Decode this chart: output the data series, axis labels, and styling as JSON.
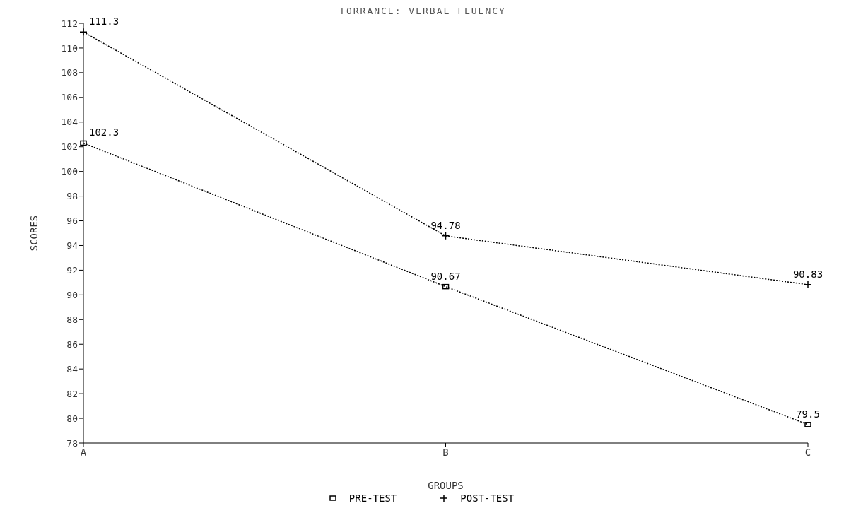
{
  "chart_data": {
    "type": "line",
    "title": "TORRANCE: VERBAL FLUENCY",
    "xlabel": "GROUPS",
    "ylabel": "SCORES",
    "categories": [
      "A",
      "B",
      "C"
    ],
    "series": [
      {
        "name": "PRE-TEST",
        "color": "#000000",
        "marker": "square",
        "values": [
          102.3,
          90.67,
          79.5
        ]
      },
      {
        "name": "POST-TEST",
        "color": "#000000",
        "marker": "cross",
        "values": [
          111.3,
          94.78,
          90.83
        ]
      }
    ],
    "ylim": [
      78,
      112
    ],
    "yticks": [
      78,
      80,
      82,
      84,
      86,
      88,
      90,
      92,
      94,
      96,
      98,
      100,
      102,
      104,
      106,
      108,
      110,
      112
    ],
    "data_labels": true,
    "legend": "bottom",
    "grid": false,
    "line_style": "dotted"
  }
}
